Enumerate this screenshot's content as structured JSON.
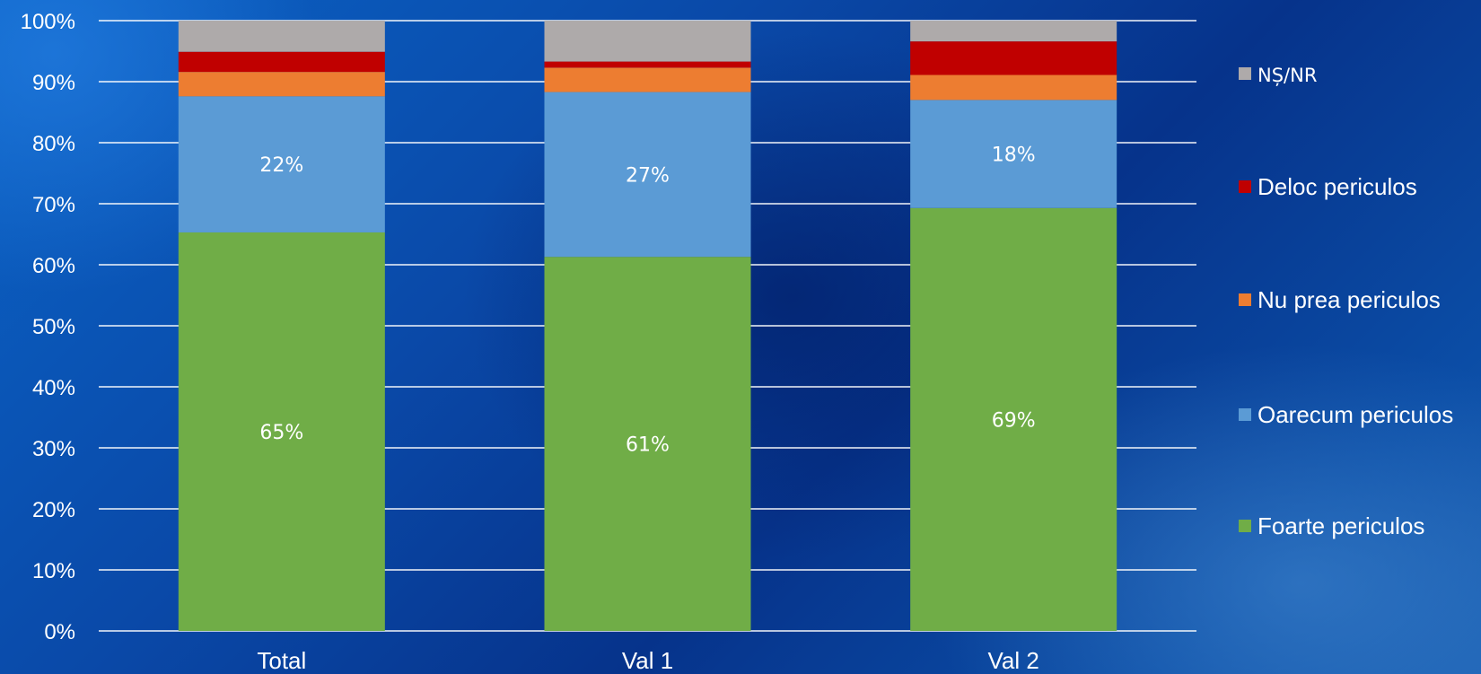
{
  "chart_data": {
    "type": "bar",
    "stacked": true,
    "title": "",
    "xlabel": "",
    "ylabel": "",
    "ylim": [
      0,
      100
    ],
    "ytick_labels": [
      "0%",
      "10%",
      "20%",
      "30%",
      "40%",
      "50%",
      "60%",
      "70%",
      "80%",
      "90%",
      "100%"
    ],
    "categories": [
      "Total",
      "Val 1",
      "Val 2"
    ],
    "series": [
      {
        "name": "Foarte periculos",
        "color": "#70ad47",
        "values": [
          65.3,
          61.3,
          69.3
        ],
        "labels": [
          "65%",
          "61%",
          "69%"
        ]
      },
      {
        "name": "Oarecum periculos",
        "color": "#5b9bd5",
        "values": [
          22.3,
          27.0,
          17.7
        ],
        "labels": [
          "22%",
          "27%",
          "18%"
        ]
      },
      {
        "name": "Nu prea periculos",
        "color": "#ed7d31",
        "values": [
          4.0,
          4.0,
          4.1
        ],
        "labels": [
          "",
          "",
          ""
        ]
      },
      {
        "name": "Deloc periculos",
        "color": "#c00000",
        "values": [
          3.3,
          1.0,
          5.5
        ],
        "labels": [
          "",
          "",
          ""
        ]
      },
      {
        "name": "NȘ/NR",
        "color": "#aeaaaa",
        "values": [
          5.1,
          6.7,
          3.4
        ],
        "labels": [
          "",
          "",
          ""
        ]
      }
    ],
    "legend_order": [
      "NȘ/NR",
      "Deloc periculos",
      "Nu prea periculos",
      "Oarecum periculos",
      "Foarte periculos"
    ],
    "legend_position": "right",
    "grid": true
  }
}
